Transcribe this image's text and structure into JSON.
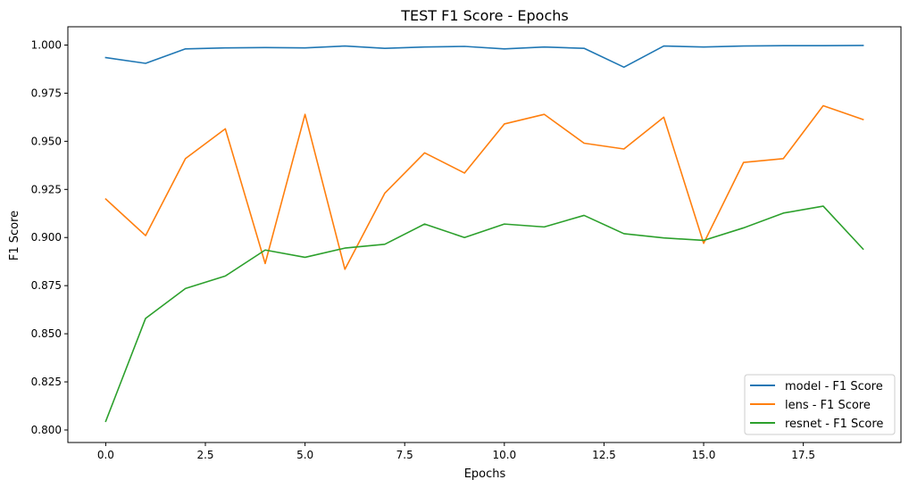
{
  "chart_data": {
    "type": "line",
    "title": "TEST F1 Score - Epochs",
    "xlabel": "Epochs",
    "ylabel": "F1 Score",
    "xlim": [
      -0.95,
      19.95
    ],
    "ylim": [
      0.7935,
      1.0095
    ],
    "x": [
      0,
      1,
      2,
      3,
      4,
      5,
      6,
      7,
      8,
      9,
      10,
      11,
      12,
      13,
      14,
      15,
      16,
      17,
      18,
      19
    ],
    "xticks": [
      0.0,
      2.5,
      5.0,
      7.5,
      10.0,
      12.5,
      15.0,
      17.5
    ],
    "xtick_labels": [
      "0.0",
      "2.5",
      "5.0",
      "7.5",
      "10.0",
      "12.5",
      "15.0",
      "17.5"
    ],
    "yticks": [
      0.8,
      0.825,
      0.85,
      0.875,
      0.9,
      0.925,
      0.95,
      0.975,
      1.0
    ],
    "ytick_labels": [
      "0.800",
      "0.825",
      "0.850",
      "0.875",
      "0.900",
      "0.925",
      "0.950",
      "0.975",
      "1.000"
    ],
    "grid": false,
    "legend_position": "bottom-right",
    "series": [
      {
        "name": "model - F1 Score",
        "color": "#1f77b4",
        "values": [
          0.9935,
          0.9905,
          0.998,
          0.9985,
          0.9987,
          0.9985,
          0.9995,
          0.9983,
          0.999,
          0.9993,
          0.998,
          0.999,
          0.9983,
          0.9885,
          0.9995,
          0.999,
          0.9995,
          0.9997,
          0.9997,
          0.9998
        ]
      },
      {
        "name": "lens - F1 Score",
        "color": "#ff7f0e",
        "values": [
          0.92,
          0.901,
          0.941,
          0.9565,
          0.8865,
          0.964,
          0.8835,
          0.923,
          0.944,
          0.9335,
          0.959,
          0.964,
          0.949,
          0.946,
          0.9625,
          0.897,
          0.939,
          0.941,
          0.9685,
          0.9613
        ]
      },
      {
        "name": "resnet - F1 Score",
        "color": "#2ca02c",
        "values": [
          0.8045,
          0.858,
          0.8735,
          0.88,
          0.8935,
          0.8897,
          0.8945,
          0.8965,
          0.907,
          0.9,
          0.907,
          0.9055,
          0.9115,
          0.902,
          0.8998,
          0.8985,
          0.905,
          0.9127,
          0.9163,
          0.894
        ]
      }
    ]
  }
}
